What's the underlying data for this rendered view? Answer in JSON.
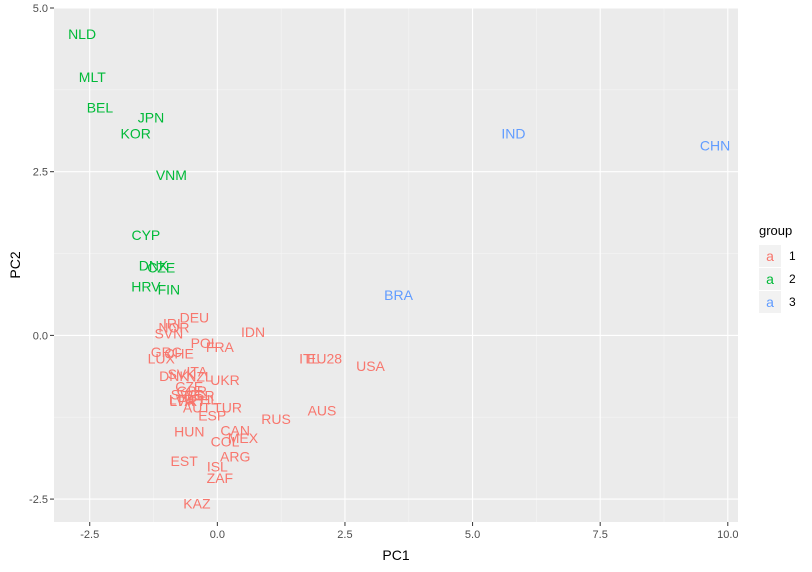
{
  "chart_data": {
    "type": "scatter",
    "title": "",
    "xlabel": "PC1",
    "ylabel": "PC2",
    "xlim": [
      -3.2,
      10.2
    ],
    "ylim": [
      -2.85,
      5.0
    ],
    "x_ticks": [
      -2.5,
      0.0,
      2.5,
      5.0,
      7.5,
      10.0
    ],
    "x_tick_labels": [
      "-2.5",
      "0.0",
      "2.5",
      "5.0",
      "7.5",
      "10.0"
    ],
    "y_ticks": [
      -2.5,
      0.0,
      2.5,
      5.0
    ],
    "y_tick_labels": [
      "-2.5",
      "0.0",
      "2.5",
      "5.0"
    ],
    "grid": true,
    "legend": {
      "title": "group",
      "placement": "right",
      "key_glyph": "a",
      "entries": [
        {
          "label": "1",
          "color": "#F8766D"
        },
        {
          "label": "2",
          "color": "#00BA38"
        },
        {
          "label": "3",
          "color": "#619CFF"
        }
      ]
    },
    "series": [
      {
        "group": "1",
        "color": "#F8766D",
        "points": [
          {
            "label": "IDN",
            "x": 0.7,
            "y": 0.05
          },
          {
            "label": "DEU",
            "x": -0.45,
            "y": 0.27
          },
          {
            "label": "IRL",
            "x": -0.85,
            "y": 0.18
          },
          {
            "label": "NOR",
            "x": -0.85,
            "y": 0.12
          },
          {
            "label": "SVN",
            "x": -0.95,
            "y": 0.03
          },
          {
            "label": "POL",
            "x": -0.25,
            "y": -0.12
          },
          {
            "label": "FRA",
            "x": 0.05,
            "y": -0.18
          },
          {
            "label": "GRC",
            "x": -1.0,
            "y": -0.25
          },
          {
            "label": "CHE",
            "x": -0.75,
            "y": -0.28
          },
          {
            "label": "LUX",
            "x": -1.1,
            "y": -0.35
          },
          {
            "label": "EU28",
            "x": 2.1,
            "y": -0.35
          },
          {
            "label": "ITL",
            "x": 1.8,
            "y": -0.35
          },
          {
            "label": "USA",
            "x": 3.0,
            "y": -0.47
          },
          {
            "label": "ITA",
            "x": -0.4,
            "y": -0.55
          },
          {
            "label": "SVK",
            "x": -0.7,
            "y": -0.59
          },
          {
            "label": "DNK",
            "x": -0.85,
            "y": -0.62
          },
          {
            "label": "NZL",
            "x": -0.35,
            "y": -0.63
          },
          {
            "label": "UKR",
            "x": 0.15,
            "y": -0.68
          },
          {
            "label": "CZE",
            "x": -0.55,
            "y": -0.78
          },
          {
            "label": "GBR",
            "x": -0.5,
            "y": -0.85
          },
          {
            "label": "SWE",
            "x": -0.6,
            "y": -0.9
          },
          {
            "label": "BGR",
            "x": -0.35,
            "y": -0.92
          },
          {
            "label": "LTU",
            "x": -0.7,
            "y": -0.98
          },
          {
            "label": "PRT",
            "x": -0.5,
            "y": -1.0
          },
          {
            "label": "LVA",
            "x": -0.7,
            "y": -1.0
          },
          {
            "label": "PHL",
            "x": -0.25,
            "y": -0.98
          },
          {
            "label": "AUT",
            "x": -0.4,
            "y": -1.1
          },
          {
            "label": "TUR",
            "x": 0.2,
            "y": -1.1
          },
          {
            "label": "AUS",
            "x": 2.05,
            "y": -1.15
          },
          {
            "label": "ESP",
            "x": -0.1,
            "y": -1.22
          },
          {
            "label": "RUS",
            "x": 1.15,
            "y": -1.28
          },
          {
            "label": "HUN",
            "x": -0.55,
            "y": -1.47
          },
          {
            "label": "CAN",
            "x": 0.35,
            "y": -1.45
          },
          {
            "label": "MEX",
            "x": 0.5,
            "y": -1.57
          },
          {
            "label": "COL",
            "x": 0.15,
            "y": -1.62
          },
          {
            "label": "ARG",
            "x": 0.35,
            "y": -1.85
          },
          {
            "label": "EST",
            "x": -0.65,
            "y": -1.92
          },
          {
            "label": "ISL",
            "x": 0.0,
            "y": -2.0
          },
          {
            "label": "ZAF",
            "x": 0.05,
            "y": -2.18
          },
          {
            "label": "KAZ",
            "x": -0.4,
            "y": -2.57
          }
        ]
      },
      {
        "group": "2",
        "color": "#00BA38",
        "points": [
          {
            "label": "NLD",
            "x": -2.65,
            "y": 4.6
          },
          {
            "label": "MLT",
            "x": -2.45,
            "y": 3.95
          },
          {
            "label": "BEL",
            "x": -2.3,
            "y": 3.48
          },
          {
            "label": "JPN",
            "x": -1.3,
            "y": 3.33
          },
          {
            "label": "KOR",
            "x": -1.6,
            "y": 3.08
          },
          {
            "label": "VNM",
            "x": -0.9,
            "y": 2.45
          },
          {
            "label": "CYP",
            "x": -1.4,
            "y": 1.53
          },
          {
            "label": "DNK",
            "x": -1.25,
            "y": 1.07
          },
          {
            "label": "CZE",
            "x": -1.1,
            "y": 1.04
          },
          {
            "label": "HRV",
            "x": -1.4,
            "y": 0.75
          },
          {
            "label": "FIN",
            "x": -0.95,
            "y": 0.7
          }
        ]
      },
      {
        "group": "3",
        "color": "#619CFF",
        "points": [
          {
            "label": "IND",
            "x": 5.8,
            "y": 3.08
          },
          {
            "label": "CHN",
            "x": 9.75,
            "y": 2.9
          },
          {
            "label": "BRA",
            "x": 3.55,
            "y": 0.62
          }
        ]
      }
    ]
  }
}
